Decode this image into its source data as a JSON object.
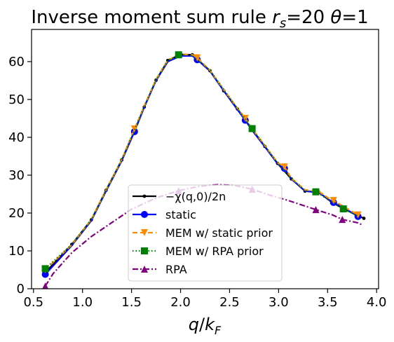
{
  "chart_data": {
    "type": "line",
    "title": "Inverse moment sum rule r_s=20 θ=1",
    "title_parts": {
      "main": "Inverse moment sum rule ",
      "r": "r",
      "s": "s",
      "eq1": "=20 ",
      "theta": "θ",
      "eq2": "=1"
    },
    "xlabel": "q/k_F",
    "xlabel_parts": {
      "q": "q",
      "slash": "/",
      "k": "k",
      "F": "F"
    },
    "ylabel": "",
    "xlim": [
      0.48,
      4.02
    ],
    "ylim": [
      0,
      68.5
    ],
    "x_ticks": [
      0.5,
      1.0,
      1.5,
      2.0,
      2.5,
      3.0,
      3.5,
      4.0
    ],
    "x_tick_labels": [
      "0.5",
      "1.0",
      "1.5",
      "2.0",
      "2.5",
      "3.0",
      "3.5",
      "4.0"
    ],
    "y_ticks": [
      0,
      10,
      20,
      30,
      40,
      50,
      60
    ],
    "y_tick_labels": [
      "0",
      "10",
      "20",
      "30",
      "40",
      "50",
      "60"
    ],
    "grid": false,
    "legend_position": "lower-center",
    "series": [
      {
        "name": "−χ(q,0)/2n",
        "legend_label": "−χ(q,0)/2n",
        "color": "#000000",
        "style": "solid",
        "marker": "dot",
        "x": [
          0.62,
          0.89,
          1.09,
          1.24,
          1.4,
          1.53,
          1.63,
          1.75,
          1.87,
          2.0,
          2.12,
          2.3,
          2.44,
          2.58,
          2.72,
          2.86,
          2.99,
          3.13,
          3.27,
          3.41,
          3.55,
          3.69,
          3.81,
          3.87
        ],
        "y": [
          4.3,
          11.7,
          18.2,
          26.0,
          34.0,
          41.6,
          48.0,
          55.1,
          60.3,
          61.9,
          61.8,
          57.6,
          52.3,
          47.5,
          42.4,
          37.6,
          33.1,
          29.0,
          25.8,
          25.5,
          22.7,
          20.8,
          19.3,
          18.6
        ]
      },
      {
        "name": "static",
        "color": "#0000ff",
        "style": "solid",
        "marker": "circle",
        "x": [
          0.62,
          0.89,
          1.09,
          1.24,
          1.4,
          1.53,
          1.63,
          1.75,
          1.87,
          2.0,
          2.12,
          2.17,
          2.3,
          2.44,
          2.58,
          2.66,
          2.72,
          2.86,
          2.99,
          3.06,
          3.13,
          3.27,
          3.41,
          3.55,
          3.56,
          3.69,
          3.81
        ],
        "y": [
          3.8,
          11.4,
          18.0,
          25.8,
          33.8,
          41.5,
          48.0,
          55.0,
          60.0,
          61.5,
          61.5,
          60.5,
          57.5,
          52.3,
          47.3,
          44.5,
          42.2,
          37.5,
          33.0,
          31.8,
          29.0,
          25.8,
          25.4,
          22.9,
          22.8,
          21.0,
          19.1
        ]
      },
      {
        "name": "MEM w/ static prior",
        "color": "#ff8c00",
        "style": "dashed",
        "marker": "triangle-down",
        "x": [
          0.62,
          0.89,
          1.09,
          1.24,
          1.4,
          1.53,
          1.63,
          1.75,
          1.87,
          2.0,
          2.12,
          2.17,
          2.3,
          2.44,
          2.58,
          2.66,
          2.72,
          2.86,
          2.99,
          3.06,
          3.13,
          3.27,
          3.41,
          3.55,
          3.56,
          3.69,
          3.81
        ],
        "y": [
          5.0,
          11.6,
          18.3,
          26.1,
          34.1,
          42.2,
          48.3,
          55.3,
          60.4,
          61.9,
          61.8,
          61.0,
          57.7,
          52.6,
          47.7,
          45.0,
          42.6,
          37.8,
          33.3,
          32.2,
          29.2,
          26.1,
          25.7,
          23.2,
          23.3,
          21.3,
          19.5
        ]
      },
      {
        "name": "MEM w/ RPA prior",
        "color": "#008000",
        "style": "dotted",
        "marker": "square",
        "x": [
          0.62,
          0.89,
          1.09,
          1.24,
          1.4,
          1.53,
          1.63,
          1.75,
          1.87,
          1.98,
          2.12,
          2.3,
          2.44,
          2.58,
          2.73,
          2.86,
          2.99,
          3.13,
          3.27,
          3.38,
          3.55,
          3.66,
          3.81
        ],
        "y": [
          5.3,
          11.7,
          18.3,
          26.1,
          34.1,
          41.9,
          48.2,
          55.2,
          60.3,
          61.8,
          61.6,
          57.7,
          52.6,
          47.6,
          42.3,
          37.7,
          33.2,
          29.1,
          25.9,
          25.6,
          22.9,
          21.1,
          19.2
        ]
      },
      {
        "name": "RPA",
        "color": "#800080",
        "style": "dashdot",
        "marker": "triangle-up",
        "x": [
          0.62,
          0.7,
          0.89,
          1.09,
          1.3,
          1.5,
          1.75,
          1.98,
          2.2,
          2.38,
          2.55,
          2.73,
          2.9,
          3.1,
          3.38,
          3.55,
          3.65,
          3.81,
          3.86
        ],
        "y": [
          0.7,
          4.0,
          9.5,
          13.8,
          17.5,
          21.0,
          24.0,
          25.9,
          27.1,
          27.5,
          27.3,
          26.3,
          24.8,
          23.3,
          20.9,
          19.5,
          18.3,
          17.4,
          16.8
        ],
        "marker_x": [
          0.62,
          1.98,
          2.73,
          3.38,
          3.65
        ]
      }
    ]
  }
}
